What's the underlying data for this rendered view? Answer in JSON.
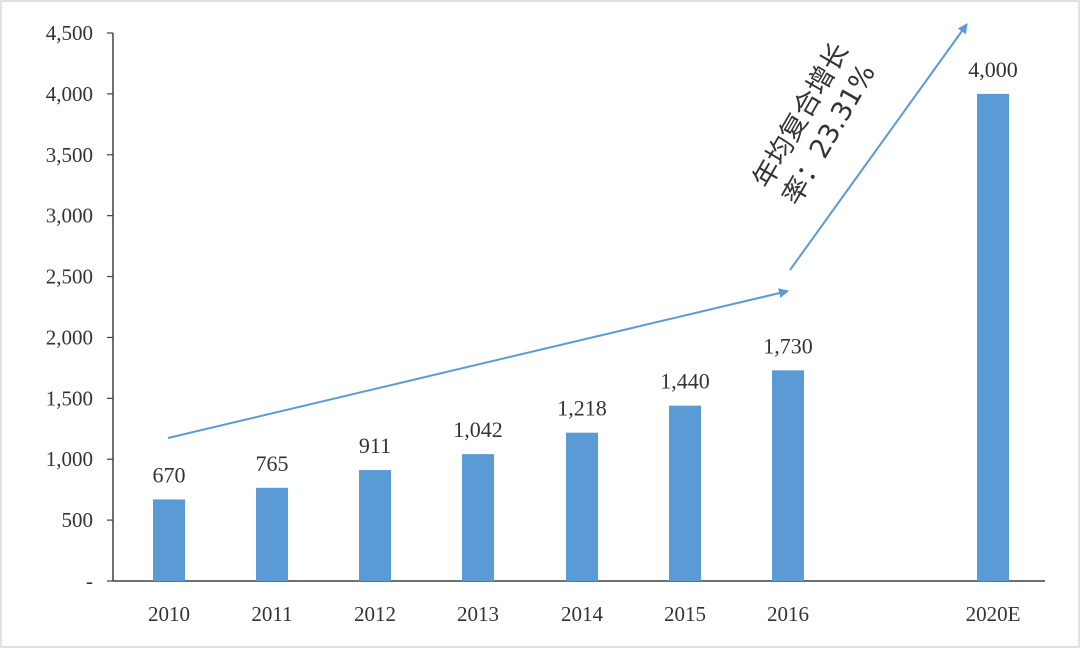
{
  "chart_data": {
    "type": "bar",
    "title": "",
    "xlabel": "",
    "ylabel": "",
    "categories": [
      "2010",
      "2011",
      "2012",
      "2013",
      "2014",
      "2015",
      "2016",
      "2020E"
    ],
    "values": [
      670,
      765,
      911,
      1042,
      1218,
      1440,
      1730,
      4000
    ],
    "data_labels": [
      "670",
      "765",
      "911",
      "1,042",
      "1,218",
      "1,440",
      "1,730",
      "4,000"
    ],
    "ylim": [
      0,
      4500
    ],
    "yticks": [
      0,
      500,
      1000,
      1500,
      2000,
      2500,
      3000,
      3500,
      4000,
      4500
    ],
    "ytick_labels": [
      "-",
      "500",
      "1,000",
      "1,500",
      "2,000",
      "2,500",
      "3,000",
      "3,500",
      "4,000",
      "4,500"
    ],
    "grid": false,
    "legend": "none",
    "bar_color": "#5b9bd5",
    "arrow_color": "#5b9bd5",
    "annotation": {
      "line1": "年均复合增长",
      "line2": "率：23.31%"
    }
  }
}
